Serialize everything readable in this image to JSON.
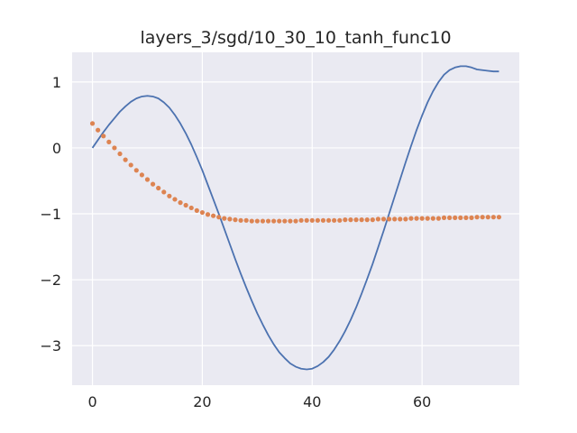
{
  "chart_data": {
    "type": "line",
    "title": "layers_3/sgd/10_30_10_tanh_func10",
    "xlabel": "",
    "ylabel": "",
    "xlim": [
      -3.7,
      77.7
    ],
    "ylim": [
      -3.6,
      1.45
    ],
    "xticks": [
      0,
      20,
      40,
      60
    ],
    "yticks": [
      1,
      0,
      -1,
      -2,
      -3
    ],
    "xtick_labels": [
      "0",
      "20",
      "40",
      "60"
    ],
    "ytick_labels": [
      "1",
      "0",
      "−1",
      "−2",
      "−3"
    ],
    "grid": true,
    "legend": "none",
    "series": [
      {
        "style": "line",
        "color": "#4c72b0",
        "x": [
          0,
          1,
          2,
          3,
          4,
          5,
          6,
          7,
          8,
          9,
          10,
          11,
          12,
          13,
          14,
          15,
          16,
          17,
          18,
          19,
          20,
          21,
          22,
          23,
          24,
          25,
          26,
          27,
          28,
          29,
          30,
          31,
          32,
          33,
          34,
          35,
          36,
          37,
          38,
          39,
          40,
          41,
          42,
          43,
          44,
          45,
          46,
          47,
          48,
          49,
          50,
          51,
          52,
          53,
          54,
          55,
          56,
          57,
          58,
          59,
          60,
          61,
          62,
          63,
          64,
          65,
          66,
          67,
          68,
          69,
          70,
          71,
          72,
          73,
          74
        ],
        "y": [
          0.0,
          0.12,
          0.24,
          0.35,
          0.45,
          0.55,
          0.63,
          0.7,
          0.75,
          0.78,
          0.79,
          0.78,
          0.75,
          0.69,
          0.61,
          0.5,
          0.37,
          0.22,
          0.05,
          -0.14,
          -0.34,
          -0.56,
          -0.78,
          -1.0,
          -1.23,
          -1.46,
          -1.69,
          -1.91,
          -2.12,
          -2.32,
          -2.51,
          -2.68,
          -2.84,
          -2.98,
          -3.1,
          -3.19,
          -3.27,
          -3.32,
          -3.35,
          -3.36,
          -3.35,
          -3.31,
          -3.25,
          -3.17,
          -3.06,
          -2.93,
          -2.78,
          -2.61,
          -2.42,
          -2.21,
          -1.99,
          -1.76,
          -1.51,
          -1.26,
          -1.0,
          -0.74,
          -0.48,
          -0.22,
          0.03,
          0.27,
          0.49,
          0.69,
          0.86,
          1.0,
          1.11,
          1.18,
          1.22,
          1.24,
          1.24,
          1.22,
          1.19,
          1.18,
          1.17,
          1.16,
          1.16
        ]
      },
      {
        "style": "dots",
        "color": "#dd8452",
        "x": [
          0,
          1,
          2,
          3,
          4,
          5,
          6,
          7,
          8,
          9,
          10,
          11,
          12,
          13,
          14,
          15,
          16,
          17,
          18,
          19,
          20,
          21,
          22,
          23,
          24,
          25,
          26,
          27,
          28,
          29,
          30,
          31,
          32,
          33,
          34,
          35,
          36,
          37,
          38,
          39,
          40,
          41,
          42,
          43,
          44,
          45,
          46,
          47,
          48,
          49,
          50,
          51,
          52,
          53,
          54,
          55,
          56,
          57,
          58,
          59,
          60,
          61,
          62,
          63,
          64,
          65,
          66,
          67,
          68,
          69,
          70,
          71,
          72,
          73,
          74
        ],
        "y": [
          0.37,
          0.27,
          0.18,
          0.09,
          0.0,
          -0.09,
          -0.18,
          -0.26,
          -0.34,
          -0.41,
          -0.48,
          -0.55,
          -0.61,
          -0.67,
          -0.73,
          -0.78,
          -0.83,
          -0.87,
          -0.91,
          -0.95,
          -0.98,
          -1.01,
          -1.03,
          -1.05,
          -1.07,
          -1.08,
          -1.09,
          -1.1,
          -1.1,
          -1.11,
          -1.11,
          -1.11,
          -1.11,
          -1.11,
          -1.11,
          -1.11,
          -1.11,
          -1.11,
          -1.1,
          -1.1,
          -1.1,
          -1.1,
          -1.1,
          -1.1,
          -1.1,
          -1.1,
          -1.09,
          -1.09,
          -1.09,
          -1.09,
          -1.09,
          -1.09,
          -1.08,
          -1.08,
          -1.08,
          -1.08,
          -1.08,
          -1.08,
          -1.07,
          -1.07,
          -1.07,
          -1.07,
          -1.07,
          -1.07,
          -1.06,
          -1.06,
          -1.06,
          -1.06,
          -1.06,
          -1.06,
          -1.05,
          -1.05,
          -1.05,
          -1.05,
          -1.05
        ]
      }
    ]
  }
}
